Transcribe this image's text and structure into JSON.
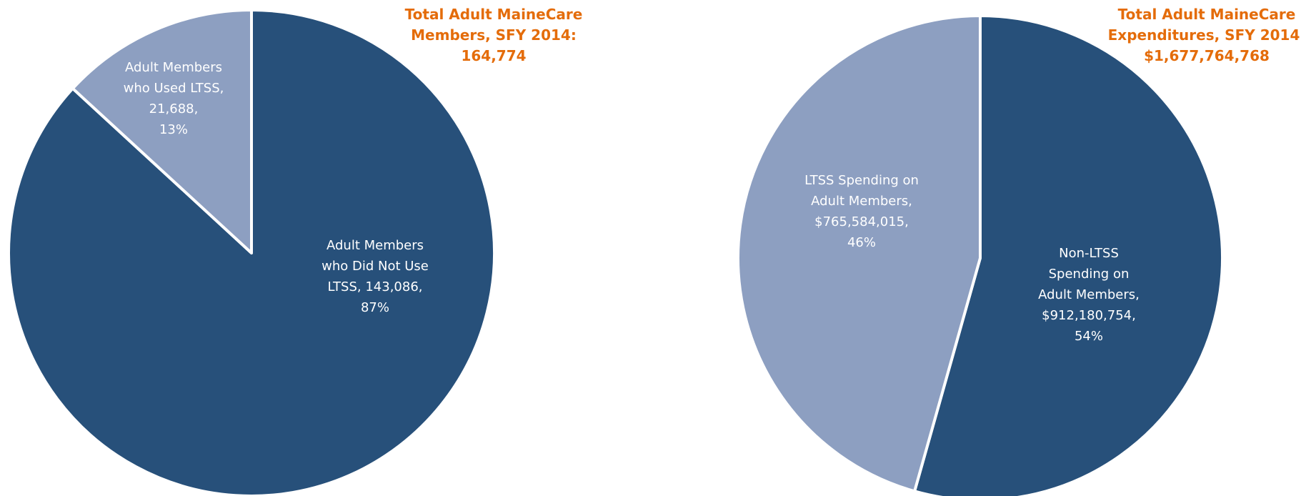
{
  "chart_data": [
    {
      "type": "pie",
      "title": "Total Adult MaineCare Members, SFY 2014:",
      "total": 164774,
      "total_label": "164,774",
      "categories": [
        "Adult Members who Did Not Use LTSS,",
        "Adult Members who Used LTSS,"
      ],
      "values": [
        143086,
        21688
      ],
      "value_labels": [
        "143,086,",
        "21,688,"
      ],
      "percents": [
        87,
        13
      ],
      "percent_labels": [
        "87%",
        "13%"
      ],
      "colors": [
        "#27507a",
        "#8d9fc1"
      ]
    },
    {
      "type": "pie",
      "title": "Total Adult MaineCare Expenditures, SFY 2014:",
      "total": 1677764768,
      "total_label": "$1,677,764,768",
      "categories": [
        "Non-LTSS Spending on Adult Members,",
        "LTSS Spending on Adult Members,"
      ],
      "values": [
        912180754,
        765584015
      ],
      "value_labels": [
        "$912,180,754,",
        "$765,584,015,"
      ],
      "percents": [
        54,
        46
      ],
      "percent_labels": [
        "54%",
        "46%"
      ],
      "colors": [
        "#27507a",
        "#8d9fc1"
      ]
    }
  ]
}
